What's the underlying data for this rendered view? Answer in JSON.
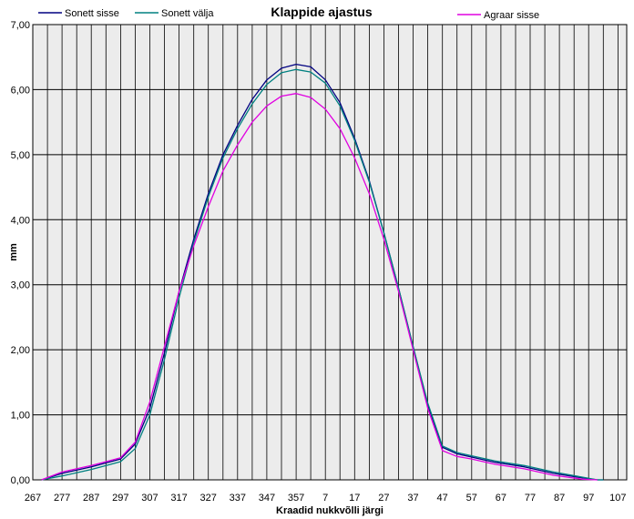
{
  "chart_data": {
    "type": "line",
    "title": "Klappide ajastus",
    "xlabel": "Kraadid nukkvõlli  järgi",
    "ylabel": "mm",
    "x_tick_labels": [
      "267",
      "277",
      "287",
      "297",
      "307",
      "317",
      "327",
      "337",
      "347",
      "357",
      "7",
      "17",
      "27",
      "37",
      "47",
      "57",
      "67",
      "77",
      "87",
      "97",
      "107"
    ],
    "x_tick_step": 10,
    "x_range": [
      267,
      470
    ],
    "y_ticks": [
      "0,00",
      "1,00",
      "2,00",
      "3,00",
      "4,00",
      "5,00",
      "6,00",
      "7,00"
    ],
    "ylim": [
      0,
      7
    ],
    "grid": true,
    "legend_position": "top",
    "series": [
      {
        "name": "Sonett sisse",
        "color": "#000080",
        "x": [
          270,
          277,
          287,
          297,
          302,
          307,
          312,
          317,
          322,
          327,
          332,
          337,
          342,
          347,
          352,
          357,
          362,
          367,
          372,
          377,
          382,
          387,
          392,
          397,
          402,
          407,
          412,
          417,
          422,
          425,
          435,
          445,
          455,
          460,
          462
        ],
        "y": [
          0.0,
          0.1,
          0.2,
          0.32,
          0.55,
          1.1,
          1.95,
          2.9,
          3.7,
          4.4,
          5.0,
          5.45,
          5.85,
          6.15,
          6.33,
          6.39,
          6.35,
          6.15,
          5.8,
          5.25,
          4.6,
          3.8,
          2.95,
          2.05,
          1.15,
          0.5,
          0.4,
          0.35,
          0.3,
          0.27,
          0.2,
          0.1,
          0.03,
          0.0,
          0.0
        ]
      },
      {
        "name": "Sonett välja",
        "color": "#008080",
        "x": [
          270,
          277,
          287,
          297,
          302,
          307,
          312,
          317,
          322,
          327,
          332,
          337,
          342,
          347,
          352,
          357,
          362,
          367,
          372,
          377,
          382,
          387,
          392,
          397,
          402,
          407,
          412,
          417,
          422,
          425,
          435,
          445,
          455,
          460,
          462
        ],
        "y": [
          0.0,
          0.06,
          0.16,
          0.28,
          0.48,
          1.0,
          1.85,
          2.8,
          3.65,
          4.35,
          4.95,
          5.4,
          5.78,
          6.08,
          6.26,
          6.31,
          6.27,
          6.1,
          5.75,
          5.22,
          4.58,
          3.8,
          2.95,
          2.05,
          1.18,
          0.52,
          0.42,
          0.37,
          0.32,
          0.29,
          0.22,
          0.12,
          0.04,
          0.0,
          0.0
        ]
      },
      {
        "name": "Agraar sisse",
        "color": "#e000e0",
        "x": [
          270,
          277,
          287,
          297,
          302,
          307,
          312,
          317,
          322,
          327,
          332,
          337,
          342,
          347,
          352,
          357,
          362,
          367,
          372,
          377,
          382,
          387,
          392,
          397,
          402,
          407,
          412,
          417,
          422,
          425,
          435,
          445,
          455,
          460
        ],
        "y": [
          0.0,
          0.12,
          0.22,
          0.34,
          0.58,
          1.2,
          2.05,
          2.9,
          3.6,
          4.2,
          4.75,
          5.15,
          5.5,
          5.75,
          5.9,
          5.94,
          5.88,
          5.7,
          5.4,
          4.95,
          4.4,
          3.7,
          2.9,
          2.0,
          1.1,
          0.45,
          0.36,
          0.32,
          0.27,
          0.24,
          0.17,
          0.07,
          0.01,
          0.0
        ]
      }
    ]
  }
}
